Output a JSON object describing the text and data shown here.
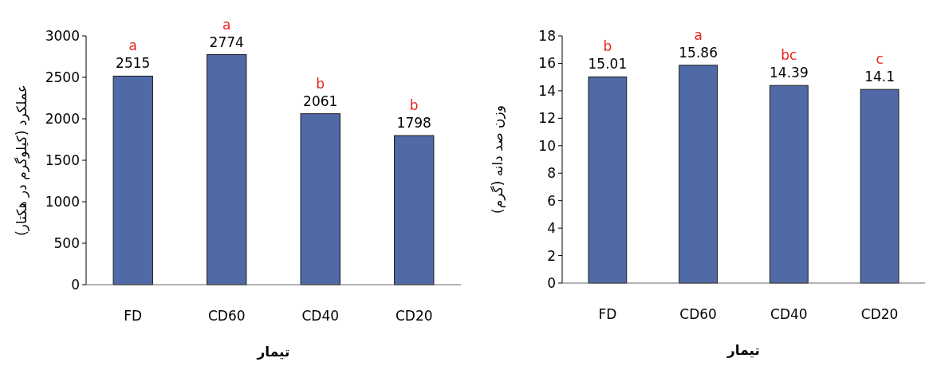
{
  "chart_data": [
    {
      "type": "bar",
      "xlabel": "تیمار",
      "ylabel": "عملکرد (کیلوگرم در هکتار)",
      "categories": [
        "FD",
        "CD60",
        "CD40",
        "CD20"
      ],
      "values": [
        2515,
        2774,
        2061,
        1798
      ],
      "color": "#4f6aa6",
      "ylim": [
        0,
        3000
      ],
      "yticks": [
        0,
        500,
        1000,
        1500,
        2000,
        2500,
        3000
      ],
      "data_labels": true,
      "grid": false,
      "annotations": [
        {
          "text": "a",
          "x": "FD",
          "y": 2515
        },
        {
          "text": "a",
          "x": "CD60",
          "y": 2774
        },
        {
          "text": "b",
          "x": "CD40",
          "y": 2061
        },
        {
          "text": "b",
          "x": "CD20",
          "y": 1798
        }
      ]
    },
    {
      "type": "bar",
      "xlabel": "تیمار",
      "ylabel": "وزن صد دانه (گرم)",
      "categories": [
        "FD",
        "CD60",
        "CD40",
        "CD20"
      ],
      "values": [
        15.01,
        15.86,
        14.39,
        14.1
      ],
      "color": "#4f6aa6",
      "ylim": [
        0,
        18
      ],
      "yticks": [
        0,
        2,
        4,
        6,
        8,
        10,
        12,
        14,
        16,
        18
      ],
      "data_labels": true,
      "grid": false,
      "annotations": [
        {
          "text": "b",
          "x": "FD",
          "y": 15.01
        },
        {
          "text": "a",
          "x": "CD60",
          "y": 15.86
        },
        {
          "text": "bc",
          "x": "CD40",
          "y": 14.39
        },
        {
          "text": "c",
          "x": "CD20",
          "y": 14.1
        }
      ]
    }
  ]
}
